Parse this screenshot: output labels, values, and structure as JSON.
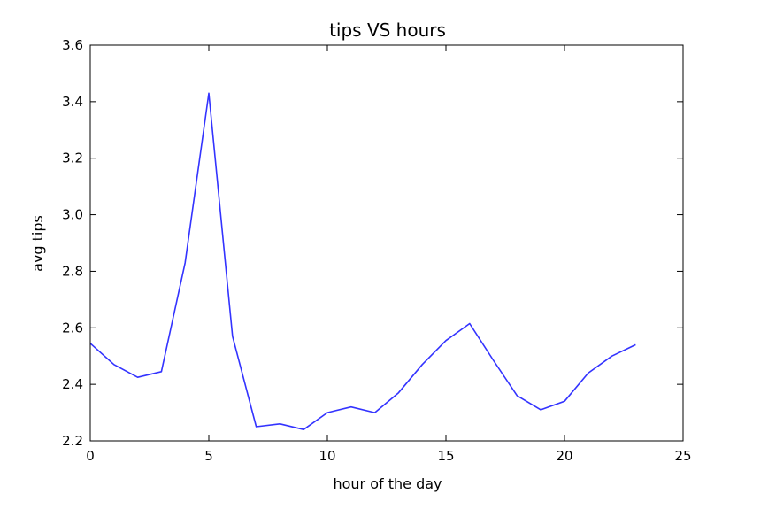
{
  "chart_data": {
    "type": "line",
    "title": "tips VS hours",
    "xlabel": "hour of the day",
    "ylabel": "avg tips",
    "xlim": [
      0,
      25
    ],
    "ylim": [
      2.2,
      3.6
    ],
    "xticks": [
      0,
      5,
      10,
      15,
      20,
      25
    ],
    "yticks": [
      2.2,
      2.4,
      2.6,
      2.8,
      3.0,
      3.2,
      3.4,
      3.6
    ],
    "xtick_labels": [
      "0",
      "5",
      "10",
      "15",
      "20",
      "25"
    ],
    "ytick_labels": [
      "2.2",
      "2.4",
      "2.6",
      "2.8",
      "3.0",
      "3.2",
      "3.4",
      "3.6"
    ],
    "grid": false,
    "line_color": "#3333ff",
    "series": [
      {
        "x": [
          0,
          1,
          2,
          3,
          4,
          5,
          6,
          7,
          8,
          9,
          10,
          11,
          12,
          13,
          14,
          15,
          16,
          17,
          18,
          19,
          20,
          21,
          22,
          23
        ],
        "values": [
          2.545,
          2.47,
          2.425,
          2.445,
          2.83,
          3.43,
          2.57,
          2.25,
          2.26,
          2.24,
          2.3,
          2.32,
          2.3,
          2.37,
          2.47,
          2.555,
          2.615,
          2.485,
          2.36,
          2.31,
          2.34,
          2.44,
          2.5,
          2.54
        ]
      }
    ]
  }
}
